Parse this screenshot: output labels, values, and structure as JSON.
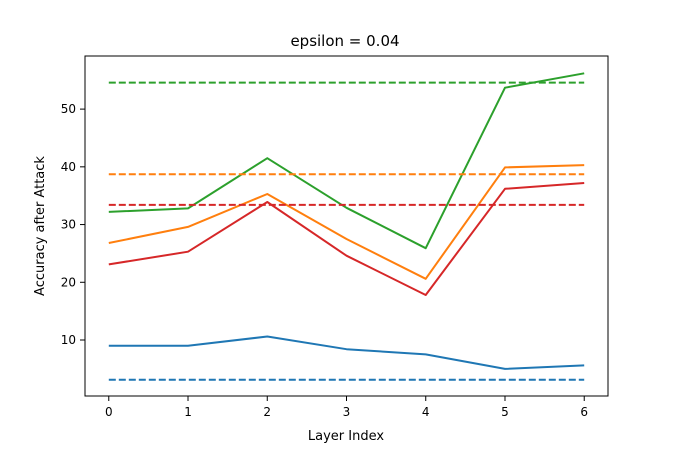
{
  "chart_data": {
    "type": "line",
    "title": "epsilon = 0.04",
    "xlabel": "Layer Index",
    "ylabel": "Accuracy after Attack",
    "x": [
      0,
      1,
      2,
      3,
      4,
      5,
      6
    ],
    "xticks": [
      "0",
      "1",
      "2",
      "3",
      "4",
      "5",
      "6"
    ],
    "yticks": [
      "10",
      "20",
      "30",
      "40",
      "50"
    ],
    "xlim": [
      -0.3,
      6.3
    ],
    "ylim": [
      0.3,
      59.2
    ],
    "grid": false,
    "legend": false,
    "series": [
      {
        "color": "#1f77b4",
        "style": "solid",
        "values": [
          9.0,
          9.0,
          10.6,
          8.4,
          7.5,
          5.0,
          5.6
        ]
      },
      {
        "color": "#ff7f0e",
        "style": "solid",
        "values": [
          26.8,
          29.6,
          35.3,
          27.5,
          20.6,
          39.9,
          40.3
        ]
      },
      {
        "color": "#2ca02c",
        "style": "solid",
        "values": [
          32.2,
          32.8,
          41.5,
          32.9,
          25.9,
          53.7,
          56.2
        ]
      },
      {
        "color": "#d62728",
        "style": "solid",
        "values": [
          23.1,
          25.3,
          33.9,
          24.6,
          17.8,
          36.2,
          37.2
        ]
      },
      {
        "color": "#1f77b4",
        "style": "dashed",
        "values": [
          3.1,
          3.1,
          3.1,
          3.1,
          3.1,
          3.1,
          3.1
        ]
      },
      {
        "color": "#ff7f0e",
        "style": "dashed",
        "values": [
          38.7,
          38.7,
          38.7,
          38.7,
          38.7,
          38.7,
          38.7
        ]
      },
      {
        "color": "#2ca02c",
        "style": "dashed",
        "values": [
          54.6,
          54.6,
          54.6,
          54.6,
          54.6,
          54.6,
          54.6
        ]
      },
      {
        "color": "#d62728",
        "style": "dashed",
        "values": [
          33.4,
          33.4,
          33.4,
          33.4,
          33.4,
          33.4,
          33.4
        ]
      }
    ]
  }
}
